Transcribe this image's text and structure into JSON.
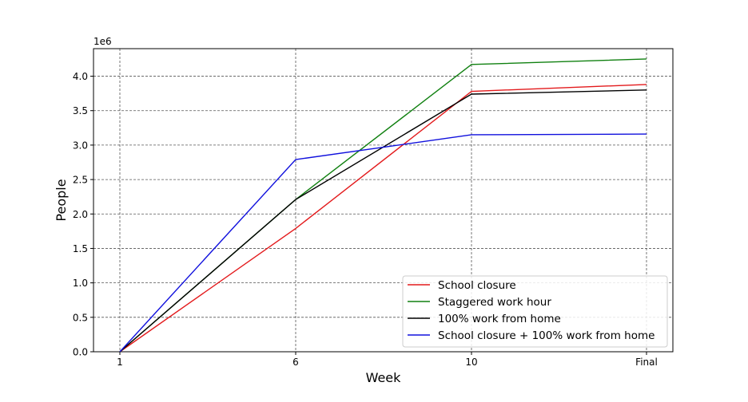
{
  "chart_data": {
    "type": "line",
    "title": "",
    "xlabel": "Week",
    "ylabel": "People",
    "y_offset_label": "1e6",
    "categories": [
      "1",
      "6",
      "10",
      "Final"
    ],
    "ylim": [
      0,
      4.4
    ],
    "yticks": [
      0.0,
      0.5,
      1.0,
      1.5,
      2.0,
      2.5,
      3.0,
      3.5,
      4.0
    ],
    "ytick_labels": [
      "0.0",
      "0.5",
      "1.0",
      "1.5",
      "2.0",
      "2.5",
      "3.0",
      "3.5",
      "4.0"
    ],
    "grid": true,
    "legend_position": "lower-right",
    "series": [
      {
        "name": "School closure",
        "color": "#e31a1c",
        "values": [
          0.0,
          1.79,
          3.78,
          3.88
        ]
      },
      {
        "name": "Staggered work hour",
        "color": "#108010",
        "values": [
          0.0,
          2.21,
          4.17,
          4.25
        ]
      },
      {
        "name": "100% work from home",
        "color": "#000000",
        "values": [
          0.0,
          2.21,
          3.74,
          3.8
        ]
      },
      {
        "name": "School closure + 100% work from home",
        "color": "#1010dd",
        "values": [
          0.0,
          2.79,
          3.15,
          3.16
        ]
      }
    ]
  }
}
